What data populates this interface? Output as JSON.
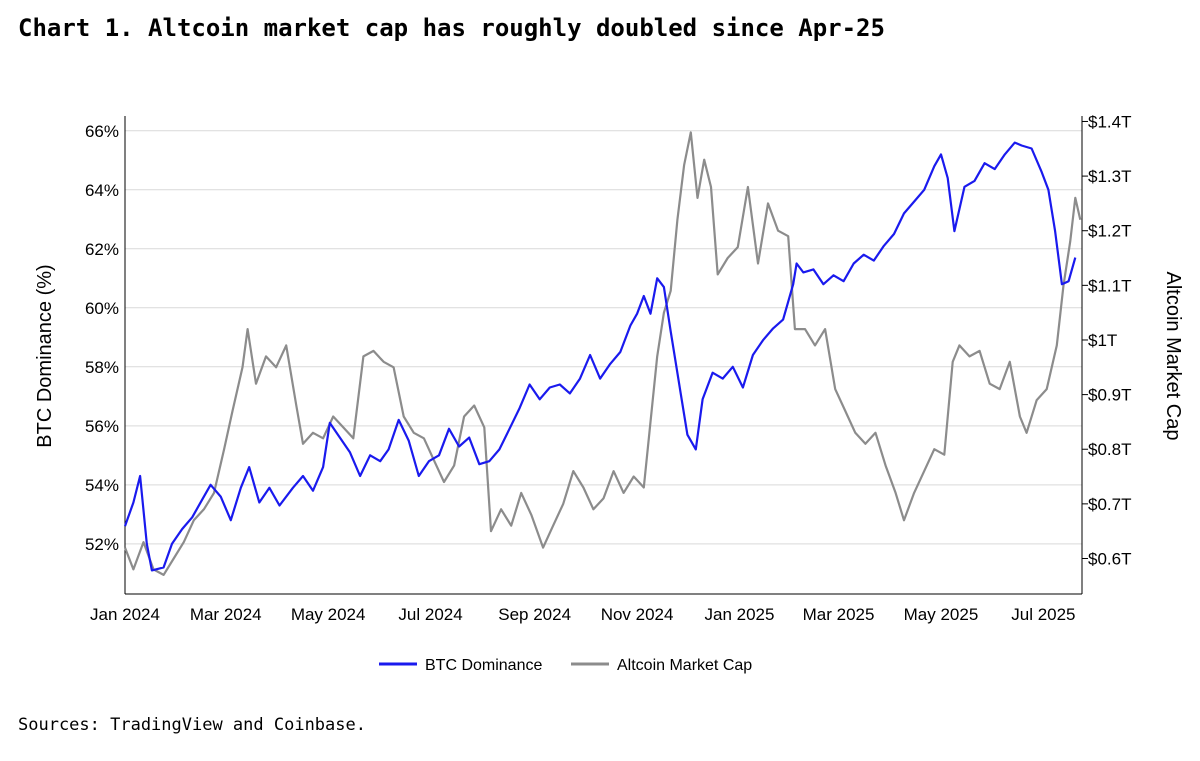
{
  "header": {
    "title": "Chart 1. Altcoin market cap has roughly doubled since Apr-25"
  },
  "footer": {
    "source": "Sources: TradingView and Coinbase."
  },
  "colors": {
    "btc": "#1a1aee",
    "alt": "#8c8c8c",
    "grid": "#d9d9d9",
    "axis": "#000000"
  },
  "chart_data": {
    "type": "line",
    "title": "Chart 1. Altcoin market cap has roughly doubled since Apr-25",
    "xlabel": "",
    "y_left_label": "BTC Dominance (%)",
    "y_right_label": "Altcoin Market Cap",
    "x_tick_labels": [
      "Jan 2024",
      "Mar 2024",
      "May 2024",
      "Jul 2024",
      "Sep 2024",
      "Nov 2024",
      "Jan 2025",
      "Mar 2025",
      "May 2025",
      "Jul 2025"
    ],
    "y_left_ticks": [
      52,
      54,
      56,
      58,
      60,
      62,
      64,
      66
    ],
    "y_left_tick_labels": [
      "52%",
      "54%",
      "56%",
      "58%",
      "60%",
      "62%",
      "64%",
      "66%"
    ],
    "y_left_range": [
      50.3,
      66.5
    ],
    "y_right_ticks": [
      0.6,
      0.7,
      0.8,
      0.9,
      1.0,
      1.1,
      1.2,
      1.3,
      1.4
    ],
    "y_right_tick_labels": [
      "$0.6T",
      "$0.7T",
      "$0.8T",
      "$0.9T",
      "$1T",
      "$1.1T",
      "$1.2T",
      "$1.3T",
      "$1.4T"
    ],
    "y_right_range": [
      0.535,
      1.41
    ],
    "grid": "horizontal",
    "legend_position": "bottom-center",
    "series": [
      {
        "name": "BTC Dominance",
        "axis": "left",
        "points": [
          [
            "2024-01-01",
            52.6
          ],
          [
            "2024-01-06",
            53.4
          ],
          [
            "2024-01-10",
            54.3
          ],
          [
            "2024-01-14",
            52.0
          ],
          [
            "2024-01-17",
            51.1
          ],
          [
            "2024-01-24",
            51.2
          ],
          [
            "2024-01-29",
            52.0
          ],
          [
            "2024-02-04",
            52.5
          ],
          [
            "2024-02-10",
            52.9
          ],
          [
            "2024-02-16",
            53.5
          ],
          [
            "2024-02-21",
            54.0
          ],
          [
            "2024-02-27",
            53.6
          ],
          [
            "2024-03-04",
            52.8
          ],
          [
            "2024-03-10",
            53.9
          ],
          [
            "2024-03-15",
            54.6
          ],
          [
            "2024-03-21",
            53.4
          ],
          [
            "2024-03-27",
            53.9
          ],
          [
            "2024-04-02",
            53.3
          ],
          [
            "2024-04-10",
            53.9
          ],
          [
            "2024-04-16",
            54.3
          ],
          [
            "2024-04-22",
            53.8
          ],
          [
            "2024-04-28",
            54.6
          ],
          [
            "2024-05-02",
            56.1
          ],
          [
            "2024-05-08",
            55.6
          ],
          [
            "2024-05-14",
            55.1
          ],
          [
            "2024-05-20",
            54.3
          ],
          [
            "2024-05-26",
            55.0
          ],
          [
            "2024-06-01",
            54.8
          ],
          [
            "2024-06-06",
            55.2
          ],
          [
            "2024-06-12",
            56.2
          ],
          [
            "2024-06-18",
            55.5
          ],
          [
            "2024-06-24",
            54.3
          ],
          [
            "2024-06-30",
            54.8
          ],
          [
            "2024-07-06",
            55.0
          ],
          [
            "2024-07-12",
            55.9
          ],
          [
            "2024-07-18",
            55.3
          ],
          [
            "2024-07-24",
            55.6
          ],
          [
            "2024-07-30",
            54.7
          ],
          [
            "2024-08-05",
            54.8
          ],
          [
            "2024-08-11",
            55.2
          ],
          [
            "2024-08-17",
            55.9
          ],
          [
            "2024-08-23",
            56.6
          ],
          [
            "2024-08-29",
            57.4
          ],
          [
            "2024-09-04",
            56.9
          ],
          [
            "2024-09-10",
            57.3
          ],
          [
            "2024-09-16",
            57.4
          ],
          [
            "2024-09-22",
            57.1
          ],
          [
            "2024-09-28",
            57.6
          ],
          [
            "2024-10-04",
            58.4
          ],
          [
            "2024-10-10",
            57.6
          ],
          [
            "2024-10-16",
            58.1
          ],
          [
            "2024-10-22",
            58.5
          ],
          [
            "2024-10-28",
            59.4
          ],
          [
            "2024-11-01",
            59.8
          ],
          [
            "2024-11-05",
            60.4
          ],
          [
            "2024-11-09",
            59.8
          ],
          [
            "2024-11-13",
            61.0
          ],
          [
            "2024-11-17",
            60.7
          ],
          [
            "2024-11-21",
            59.2
          ],
          [
            "2024-11-27",
            57.1
          ],
          [
            "2024-12-01",
            55.7
          ],
          [
            "2024-12-06",
            55.2
          ],
          [
            "2024-12-10",
            56.9
          ],
          [
            "2024-12-16",
            57.8
          ],
          [
            "2024-12-22",
            57.6
          ],
          [
            "2024-12-28",
            58.0
          ],
          [
            "2025-01-03",
            57.3
          ],
          [
            "2025-01-09",
            58.4
          ],
          [
            "2025-01-15",
            58.9
          ],
          [
            "2025-01-21",
            59.3
          ],
          [
            "2025-01-27",
            59.6
          ],
          [
            "2025-02-02",
            60.8
          ],
          [
            "2025-02-04",
            61.5
          ],
          [
            "2025-02-08",
            61.2
          ],
          [
            "2025-02-14",
            61.3
          ],
          [
            "2025-02-20",
            60.8
          ],
          [
            "2025-02-26",
            61.1
          ],
          [
            "2025-03-04",
            60.9
          ],
          [
            "2025-03-10",
            61.5
          ],
          [
            "2025-03-16",
            61.8
          ],
          [
            "2025-03-22",
            61.6
          ],
          [
            "2025-03-28",
            62.1
          ],
          [
            "2025-04-03",
            62.5
          ],
          [
            "2025-04-09",
            63.2
          ],
          [
            "2025-04-15",
            63.6
          ],
          [
            "2025-04-21",
            64.0
          ],
          [
            "2025-04-27",
            64.8
          ],
          [
            "2025-05-01",
            65.2
          ],
          [
            "2025-05-05",
            64.4
          ],
          [
            "2025-05-09",
            62.6
          ],
          [
            "2025-05-15",
            64.1
          ],
          [
            "2025-05-21",
            64.3
          ],
          [
            "2025-05-27",
            64.9
          ],
          [
            "2025-06-02",
            64.7
          ],
          [
            "2025-06-08",
            65.2
          ],
          [
            "2025-06-14",
            65.6
          ],
          [
            "2025-06-18",
            65.5
          ],
          [
            "2025-06-24",
            65.4
          ],
          [
            "2025-06-30",
            64.6
          ],
          [
            "2025-07-04",
            64.0
          ],
          [
            "2025-07-08",
            62.6
          ],
          [
            "2025-07-12",
            60.8
          ],
          [
            "2025-07-16",
            60.9
          ],
          [
            "2025-07-20",
            61.7
          ]
        ]
      },
      {
        "name": "Altcoin Market Cap",
        "axis": "right",
        "points": [
          [
            "2024-01-01",
            0.62
          ],
          [
            "2024-01-06",
            0.58
          ],
          [
            "2024-01-12",
            0.63
          ],
          [
            "2024-01-18",
            0.58
          ],
          [
            "2024-01-24",
            0.57
          ],
          [
            "2024-01-30",
            0.6
          ],
          [
            "2024-02-05",
            0.63
          ],
          [
            "2024-02-11",
            0.67
          ],
          [
            "2024-02-17",
            0.69
          ],
          [
            "2024-02-23",
            0.72
          ],
          [
            "2024-02-29",
            0.8
          ],
          [
            "2024-03-05",
            0.87
          ],
          [
            "2024-03-11",
            0.95
          ],
          [
            "2024-03-14",
            1.02
          ],
          [
            "2024-03-19",
            0.92
          ],
          [
            "2024-03-25",
            0.97
          ],
          [
            "2024-03-31",
            0.95
          ],
          [
            "2024-04-06",
            0.99
          ],
          [
            "2024-04-12",
            0.88
          ],
          [
            "2024-04-16",
            0.81
          ],
          [
            "2024-04-22",
            0.83
          ],
          [
            "2024-04-28",
            0.82
          ],
          [
            "2024-05-04",
            0.86
          ],
          [
            "2024-05-10",
            0.84
          ],
          [
            "2024-05-16",
            0.82
          ],
          [
            "2024-05-22",
            0.97
          ],
          [
            "2024-05-28",
            0.98
          ],
          [
            "2024-06-03",
            0.96
          ],
          [
            "2024-06-09",
            0.95
          ],
          [
            "2024-06-15",
            0.86
          ],
          [
            "2024-06-21",
            0.83
          ],
          [
            "2024-06-27",
            0.82
          ],
          [
            "2024-07-03",
            0.78
          ],
          [
            "2024-07-09",
            0.74
          ],
          [
            "2024-07-15",
            0.77
          ],
          [
            "2024-07-21",
            0.86
          ],
          [
            "2024-07-27",
            0.88
          ],
          [
            "2024-08-02",
            0.84
          ],
          [
            "2024-08-06",
            0.65
          ],
          [
            "2024-08-12",
            0.69
          ],
          [
            "2024-08-18",
            0.66
          ],
          [
            "2024-08-24",
            0.72
          ],
          [
            "2024-08-30",
            0.68
          ],
          [
            "2024-09-06",
            0.62
          ],
          [
            "2024-09-12",
            0.66
          ],
          [
            "2024-09-18",
            0.7
          ],
          [
            "2024-09-24",
            0.76
          ],
          [
            "2024-09-30",
            0.73
          ],
          [
            "2024-10-06",
            0.69
          ],
          [
            "2024-10-12",
            0.71
          ],
          [
            "2024-10-18",
            0.76
          ],
          [
            "2024-10-24",
            0.72
          ],
          [
            "2024-10-30",
            0.75
          ],
          [
            "2024-11-05",
            0.73
          ],
          [
            "2024-11-09",
            0.85
          ],
          [
            "2024-11-13",
            0.97
          ],
          [
            "2024-11-17",
            1.05
          ],
          [
            "2024-11-21",
            1.09
          ],
          [
            "2024-11-25",
            1.22
          ],
          [
            "2024-11-29",
            1.32
          ],
          [
            "2024-12-03",
            1.38
          ],
          [
            "2024-12-07",
            1.26
          ],
          [
            "2024-12-11",
            1.33
          ],
          [
            "2024-12-15",
            1.28
          ],
          [
            "2024-12-19",
            1.12
          ],
          [
            "2024-12-25",
            1.15
          ],
          [
            "2024-12-31",
            1.17
          ],
          [
            "2025-01-06",
            1.28
          ],
          [
            "2025-01-12",
            1.14
          ],
          [
            "2025-01-18",
            1.25
          ],
          [
            "2025-01-24",
            1.2
          ],
          [
            "2025-01-30",
            1.19
          ],
          [
            "2025-02-03",
            1.02
          ],
          [
            "2025-02-09",
            1.02
          ],
          [
            "2025-02-15",
            0.99
          ],
          [
            "2025-02-21",
            1.02
          ],
          [
            "2025-02-27",
            0.91
          ],
          [
            "2025-03-05",
            0.87
          ],
          [
            "2025-03-11",
            0.83
          ],
          [
            "2025-03-17",
            0.81
          ],
          [
            "2025-03-23",
            0.83
          ],
          [
            "2025-03-29",
            0.77
          ],
          [
            "2025-04-04",
            0.72
          ],
          [
            "2025-04-09",
            0.67
          ],
          [
            "2025-04-15",
            0.72
          ],
          [
            "2025-04-21",
            0.76
          ],
          [
            "2025-04-27",
            0.8
          ],
          [
            "2025-05-03",
            0.79
          ],
          [
            "2025-05-08",
            0.96
          ],
          [
            "2025-05-12",
            0.99
          ],
          [
            "2025-05-18",
            0.97
          ],
          [
            "2025-05-24",
            0.98
          ],
          [
            "2025-05-30",
            0.92
          ],
          [
            "2025-06-05",
            0.91
          ],
          [
            "2025-06-11",
            0.96
          ],
          [
            "2025-06-17",
            0.86
          ],
          [
            "2025-06-21",
            0.83
          ],
          [
            "2025-06-27",
            0.89
          ],
          [
            "2025-07-03",
            0.91
          ],
          [
            "2025-07-09",
            0.99
          ],
          [
            "2025-07-13",
            1.1
          ],
          [
            "2025-07-17",
            1.18
          ],
          [
            "2025-07-20",
            1.26
          ],
          [
            "2025-07-23",
            1.22
          ]
        ]
      }
    ]
  }
}
